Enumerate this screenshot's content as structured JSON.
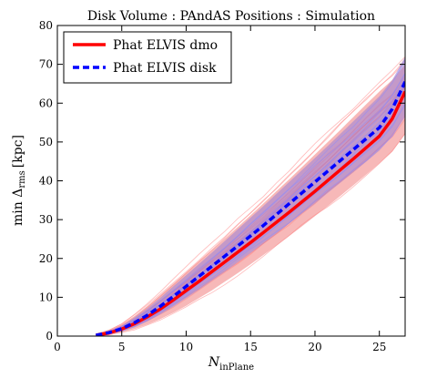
{
  "chart_data": {
    "type": "line",
    "title": "Disk   Volume : PAndAS   Positions : Simulation",
    "xlabel": "N",
    "xlabel_sub": "inPlane",
    "ylabel": "min Δ",
    "ylabel_sub": "rms",
    "ylabel_suffix": "[kpc]",
    "xlim": [
      0,
      27
    ],
    "ylim": [
      0,
      80
    ],
    "xticks": [
      0,
      5,
      10,
      15,
      20,
      25
    ],
    "yticks": [
      0,
      10,
      20,
      30,
      40,
      50,
      60,
      70,
      80
    ],
    "grid": false,
    "legend_position": "top-left",
    "colors": {
      "dmo": "#ff0000",
      "disk": "#0000ff",
      "dmo_band": "#f4a0a0",
      "disk_band": "#9a7fd6",
      "dmo_thin": "#ff8080",
      "disk_thin": "#8a8aff"
    },
    "series": [
      {
        "name": "Phat ELVIS dmo",
        "style": "solid",
        "x": [
          3,
          4,
          5,
          6,
          7,
          8,
          9,
          10,
          11,
          12,
          13,
          14,
          15,
          16,
          17,
          18,
          19,
          20,
          21,
          22,
          23,
          24,
          25,
          26,
          27
        ],
        "y": [
          0.2,
          0.8,
          1.8,
          3.2,
          5.0,
          7.0,
          9.3,
          11.7,
          14.1,
          16.6,
          19.1,
          21.6,
          24.1,
          26.7,
          29.3,
          31.9,
          34.6,
          37.3,
          40.1,
          42.9,
          45.7,
          48.6,
          51.5,
          56.0,
          63.0
        ]
      },
      {
        "name": "Phat ELVIS disk",
        "style": "dashed",
        "x": [
          3,
          4,
          5,
          6,
          7,
          8,
          9,
          10,
          11,
          12,
          13,
          14,
          15,
          16,
          17,
          18,
          19,
          20,
          21,
          22,
          23,
          24,
          25,
          26,
          27
        ],
        "y": [
          0.2,
          0.9,
          1.9,
          3.5,
          5.4,
          7.7,
          10.2,
          12.8,
          15.4,
          18.0,
          20.6,
          23.2,
          25.8,
          28.5,
          31.3,
          34.1,
          36.9,
          39.7,
          42.5,
          45.3,
          48.1,
          50.9,
          53.7,
          58.5,
          65.5
        ]
      }
    ],
    "dmo_band": {
      "x": [
        3,
        4,
        5,
        6,
        7,
        8,
        9,
        10,
        11,
        12,
        13,
        14,
        15,
        16,
        17,
        18,
        19,
        20,
        21,
        22,
        23,
        24,
        25,
        26,
        27
      ],
      "low": [
        0.1,
        0.4,
        1.0,
        1.8,
        3.0,
        4.4,
        6.0,
        7.8,
        9.8,
        11.8,
        14.0,
        16.2,
        18.5,
        20.9,
        23.3,
        25.8,
        28.3,
        30.9,
        33.5,
        36.2,
        38.9,
        41.7,
        44.5,
        47.5,
        52.0
      ],
      "high": [
        0.5,
        1.4,
        3.0,
        5.2,
        7.8,
        10.6,
        13.5,
        16.4,
        19.3,
        22.2,
        25.1,
        28.1,
        31.1,
        34.2,
        37.3,
        40.4,
        43.6,
        46.8,
        50.0,
        53.2,
        56.5,
        59.8,
        63.0,
        66.0,
        70.0
      ]
    },
    "disk_band": {
      "x": [
        3,
        4,
        5,
        6,
        7,
        8,
        9,
        10,
        11,
        12,
        13,
        14,
        15,
        16,
        17,
        18,
        19,
        20,
        21,
        22,
        23,
        24,
        25,
        26,
        27
      ],
      "low": [
        0.1,
        0.5,
        1.2,
        2.3,
        3.8,
        5.6,
        7.6,
        9.8,
        12.0,
        14.3,
        16.6,
        19.0,
        21.4,
        23.9,
        26.4,
        29.0,
        31.6,
        34.2,
        36.9,
        39.6,
        42.3,
        45.0,
        47.8,
        51.5,
        57.0
      ],
      "high": [
        0.4,
        1.3,
        2.7,
        4.8,
        7.2,
        9.9,
        12.8,
        15.7,
        18.6,
        21.5,
        24.5,
        27.5,
        30.5,
        33.5,
        36.6,
        39.7,
        42.8,
        45.9,
        49.0,
        52.2,
        55.4,
        58.6,
        61.8,
        66.0,
        72.0
      ]
    }
  }
}
